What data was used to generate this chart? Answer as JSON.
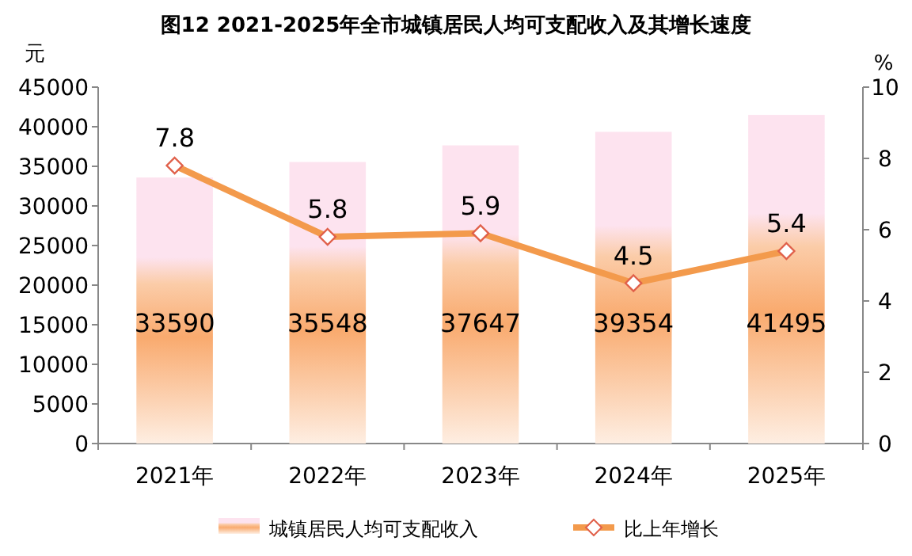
{
  "chart_data": {
    "type": "bar",
    "title": "图12  2021-2025年全市城镇居民人均可支配收入及其增长速度",
    "ylabel": "元",
    "y2label": "%",
    "categories": [
      "2021年",
      "2022年",
      "2023年",
      "2024年",
      "2025年"
    ],
    "series": [
      {
        "name": "城镇居民人均可支配收入",
        "color": "#f9aa6e",
        "values": [
          33590,
          35548,
          37647,
          39354,
          41495
        ]
      },
      {
        "name": "比上年增长",
        "type": "line",
        "axis": "y2",
        "color": "#f39a4c",
        "marker": "diamond",
        "values": [
          7.8,
          5.8,
          5.9,
          4.5,
          5.4
        ]
      }
    ],
    "ylim": [
      0,
      45000
    ],
    "yticks": [
      0,
      5000,
      10000,
      15000,
      20000,
      25000,
      30000,
      35000,
      40000,
      45000
    ],
    "y2lim": [
      0,
      10
    ],
    "y2ticks": [
      0,
      2,
      4,
      6,
      8,
      10
    ],
    "data_labels": true,
    "grid": false,
    "legend": "bottom"
  }
}
